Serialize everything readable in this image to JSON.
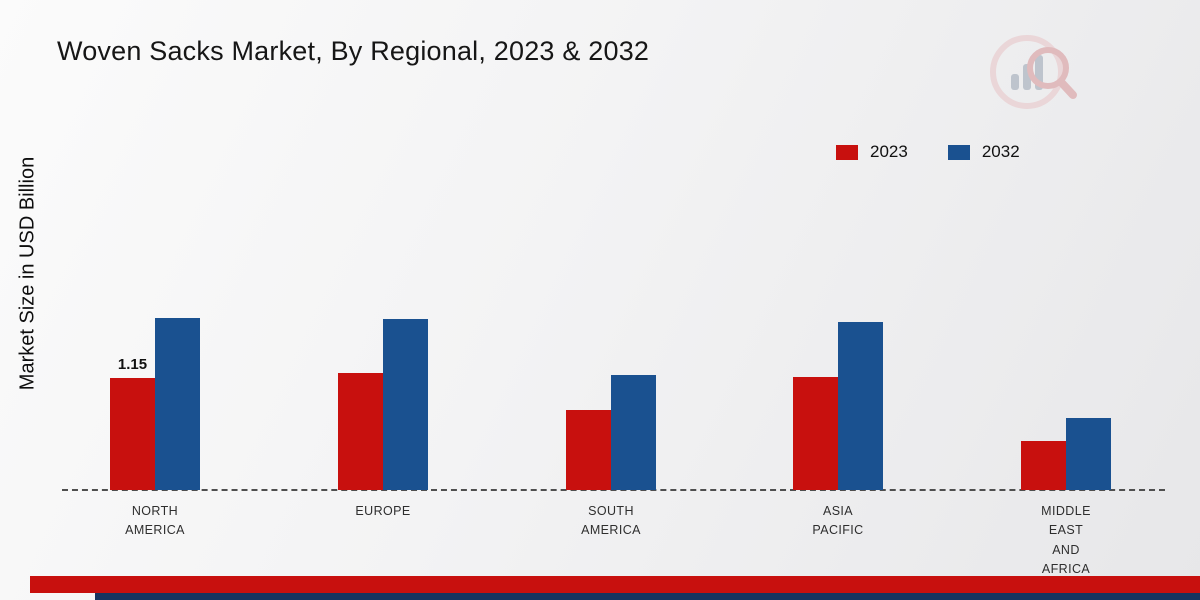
{
  "page": {
    "title": "Woven Sacks Market, By Regional, 2023 & 2032",
    "ylabel": "Market Size in USD Billion"
  },
  "colors": {
    "series_2023_red": "#c8100e",
    "series_2032_blue": "#1a5190",
    "footer_red": "#c8100e",
    "footer_navy": "#17345f",
    "baseline_gray": "#4f4f4f"
  },
  "chart_data": {
    "type": "bar",
    "title": "Woven Sacks Market, By Regional, 2023 & 2032",
    "ylabel": "Market Size in USD Billion",
    "unit": "USD Billion",
    "categories": [
      "NORTH AMERICA",
      "EUROPE",
      "SOUTH AMERICA",
      "ASIA PACIFIC",
      "MIDDLE EAST AND AFRICA"
    ],
    "series": [
      {
        "name": "2023",
        "color": "#c8100e",
        "values": [
          1.15,
          1.21,
          0.82,
          1.17,
          0.5
        ]
      },
      {
        "name": "2032",
        "color": "#1a5190",
        "values": [
          1.77,
          1.76,
          1.19,
          1.73,
          0.74
        ]
      }
    ],
    "data_labels": [
      {
        "series": "2023",
        "category": "NORTH AMERICA",
        "text": "1.15"
      }
    ],
    "ylim": [
      0,
      2
    ],
    "grid": false,
    "baseline": "dashed",
    "legend_position": "top-right"
  },
  "branding": {
    "logo": "market-research-future-logo"
  }
}
